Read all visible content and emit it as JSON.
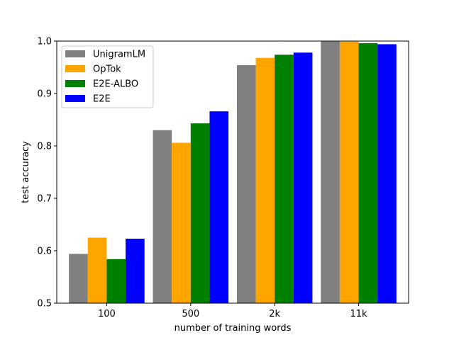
{
  "chart_data": {
    "type": "bar",
    "xlabel": "number of training words",
    "ylabel": "test accuracy",
    "categories": [
      "100",
      "500",
      "2k",
      "11k"
    ],
    "ylim": [
      0.5,
      1.0
    ],
    "yticks": [
      "0.5",
      "0.6",
      "0.7",
      "0.8",
      "0.9",
      "1.0"
    ],
    "grid": false,
    "legend_position": "top-left",
    "series": [
      {
        "name": "UnigramLM",
        "color": "#808080",
        "values": [
          0.594,
          0.83,
          0.954,
          1.0
        ]
      },
      {
        "name": "OpTok",
        "color": "#FFA500",
        "values": [
          0.625,
          0.806,
          0.968,
          0.999
        ]
      },
      {
        "name": "E2E-ALBO",
        "color": "#008000",
        "values": [
          0.584,
          0.843,
          0.974,
          0.996
        ]
      },
      {
        "name": "E2E",
        "color": "#0000FF",
        "values": [
          0.623,
          0.866,
          0.978,
          0.994
        ]
      }
    ]
  }
}
